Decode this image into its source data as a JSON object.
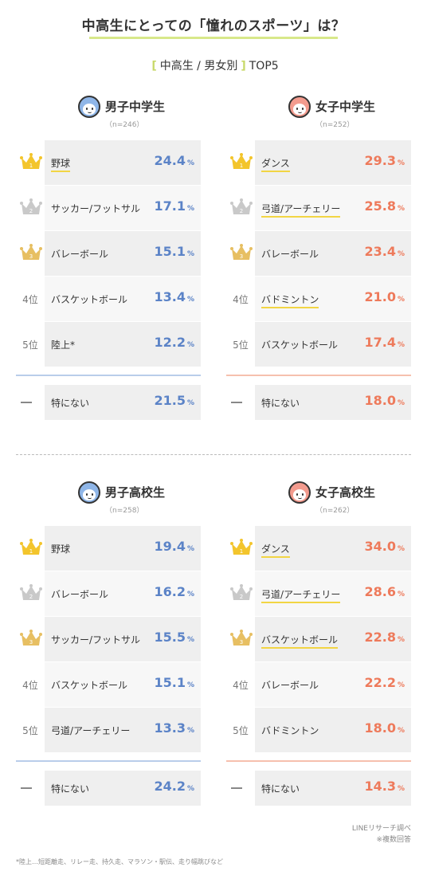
{
  "title": "中高生にとっての「憧れのスポーツ」は？",
  "subtitle": {
    "left_bracket": "[",
    "text": "中高生 / 男女別",
    "right_bracket": "]",
    "top": "TOP5"
  },
  "colors": {
    "blue": "#5b83c7",
    "coral": "#ee7a5b",
    "gold": "#f3c52c",
    "silver": "#c9c9c9",
    "bronze": "#e7bf62",
    "underline": "#f2d544"
  },
  "chart_data": [
    {
      "type": "table",
      "title": "男子中学生",
      "n": "（n=246）",
      "color": "blue",
      "rows": [
        {
          "rank": "1",
          "rank_label": "",
          "icon": "gold-crown-icon",
          "label": "野球",
          "value": 24.4,
          "value_text": "24.4",
          "underline": true
        },
        {
          "rank": "2",
          "rank_label": "",
          "icon": "silver-crown-icon",
          "label": "サッカー/フットサル",
          "value": 17.1,
          "value_text": "17.1",
          "underline": false
        },
        {
          "rank": "3",
          "rank_label": "",
          "icon": "bronze-crown-icon",
          "label": "バレーボール",
          "value": 15.1,
          "value_text": "15.1",
          "underline": false
        },
        {
          "rank": "4",
          "rank_label": "4位",
          "icon": "",
          "label": "バスケットボール",
          "value": 13.4,
          "value_text": "13.4",
          "underline": false
        },
        {
          "rank": "5",
          "rank_label": "5位",
          "icon": "",
          "label": "陸上*",
          "value": 12.2,
          "value_text": "12.2",
          "underline": false
        }
      ],
      "none": {
        "label": "特にない",
        "value": 21.5,
        "value_text": "21.5"
      }
    },
    {
      "type": "table",
      "title": "女子中学生",
      "n": "（n=252）",
      "color": "coral",
      "rows": [
        {
          "rank": "1",
          "rank_label": "",
          "icon": "gold-crown-icon",
          "label": "ダンス",
          "value": 29.3,
          "value_text": "29.3",
          "underline": true
        },
        {
          "rank": "2",
          "rank_label": "",
          "icon": "silver-crown-icon",
          "label": "弓道/アーチェリー",
          "value": 25.8,
          "value_text": "25.8",
          "underline": true
        },
        {
          "rank": "3",
          "rank_label": "",
          "icon": "bronze-crown-icon",
          "label": "バレーボール",
          "value": 23.4,
          "value_text": "23.4",
          "underline": false
        },
        {
          "rank": "4",
          "rank_label": "4位",
          "icon": "",
          "label": "バドミントン",
          "value": 21.0,
          "value_text": "21.0",
          "underline": true
        },
        {
          "rank": "5",
          "rank_label": "5位",
          "icon": "",
          "label": "バスケットボール",
          "value": 17.4,
          "value_text": "17.4",
          "underline": false
        }
      ],
      "none": {
        "label": "特にない",
        "value": 18.0,
        "value_text": "18.0"
      }
    },
    {
      "type": "table",
      "title": "男子高校生",
      "n": "（n=258）",
      "color": "blue",
      "rows": [
        {
          "rank": "1",
          "rank_label": "",
          "icon": "gold-crown-icon",
          "label": "野球",
          "value": 19.4,
          "value_text": "19.4",
          "underline": false
        },
        {
          "rank": "2",
          "rank_label": "",
          "icon": "silver-crown-icon",
          "label": "バレーボール",
          "value": 16.2,
          "value_text": "16.2",
          "underline": false
        },
        {
          "rank": "3",
          "rank_label": "",
          "icon": "bronze-crown-icon",
          "label": "サッカー/フットサル",
          "value": 15.5,
          "value_text": "15.5",
          "underline": false
        },
        {
          "rank": "4",
          "rank_label": "4位",
          "icon": "",
          "label": "バスケットボール",
          "value": 15.1,
          "value_text": "15.1",
          "underline": false
        },
        {
          "rank": "5",
          "rank_label": "5位",
          "icon": "",
          "label": "弓道/アーチェリー",
          "value": 13.3,
          "value_text": "13.3",
          "underline": false
        }
      ],
      "none": {
        "label": "特にない",
        "value": 24.2,
        "value_text": "24.2"
      }
    },
    {
      "type": "table",
      "title": "女子高校生",
      "n": "（n=262）",
      "color": "coral",
      "rows": [
        {
          "rank": "1",
          "rank_label": "",
          "icon": "gold-crown-icon",
          "label": "ダンス",
          "value": 34.0,
          "value_text": "34.0",
          "underline": true
        },
        {
          "rank": "2",
          "rank_label": "",
          "icon": "silver-crown-icon",
          "label": "弓道/アーチェリー",
          "value": 28.6,
          "value_text": "28.6",
          "underline": true
        },
        {
          "rank": "3",
          "rank_label": "",
          "icon": "bronze-crown-icon",
          "label": "バスケットボール",
          "value": 22.8,
          "value_text": "22.8",
          "underline": true
        },
        {
          "rank": "4",
          "rank_label": "4位",
          "icon": "",
          "label": "バレーボール",
          "value": 22.2,
          "value_text": "22.2",
          "underline": false
        },
        {
          "rank": "5",
          "rank_label": "5位",
          "icon": "",
          "label": "バドミントン",
          "value": 18.0,
          "value_text": "18.0",
          "underline": false
        }
      ],
      "none": {
        "label": "特にない",
        "value": 14.3,
        "value_text": "14.3"
      }
    }
  ],
  "unit": "%",
  "source": {
    "line1": "LINEリサーチ調べ",
    "line2": "※複数回答"
  },
  "footnote": "*陸上…短距離走、リレー走、持久走、マラソン・駅伝、走り幅跳びなど"
}
